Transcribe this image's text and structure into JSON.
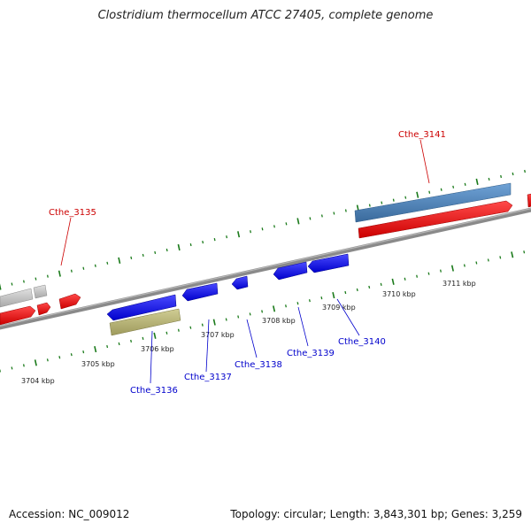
{
  "title": "Clostridium thermocellum ATCC 27405, complete genome",
  "footer": {
    "accession": "Accession: NC_009012",
    "topology": "Topology: circular; Length: 3,843,301 bp; Genes: 3,259"
  },
  "colors": {
    "forward_gene": "#ff0000",
    "reverse_gene": "#0000ee",
    "rna_gene": "#4a7fb5",
    "pseudo_gene": "#b5b27a",
    "other_gene": "#c8c8c8",
    "tick": "#1a7a1a",
    "forward_label": "#cc0000",
    "reverse_label": "#0000cc",
    "backbone": "#808080"
  },
  "kbp_ticks": [
    "3704 kbp",
    "3705 kbp",
    "3706 kbp",
    "3707 kbp",
    "3708 kbp",
    "3709 kbp",
    "3710 kbp",
    "3711 kbp"
  ],
  "gene_labels": {
    "forward": [
      "Cthe_3135",
      "Cthe_3141"
    ],
    "reverse": [
      "Cthe_3136",
      "Cthe_3137",
      "Cthe_3138",
      "Cthe_3139",
      "Cthe_3140"
    ]
  }
}
